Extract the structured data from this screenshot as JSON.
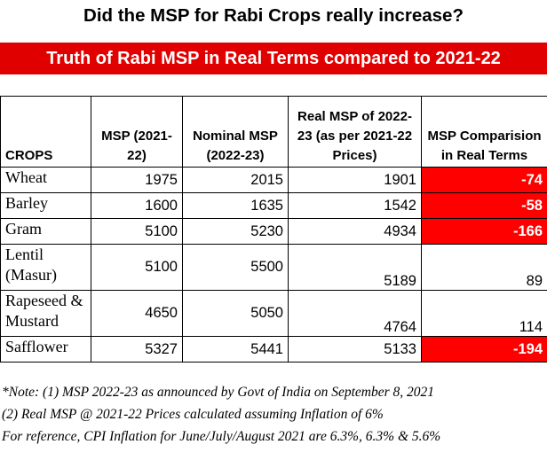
{
  "title": "Did the MSP for Rabi Crops really increase?",
  "banner": "Truth of Rabi MSP in Real Terms compared to 2021-22",
  "colors": {
    "banner": "#e00000",
    "negative": "#ff0000"
  },
  "table": {
    "headers": {
      "crops": "CROPS",
      "msp": "MSP (2021-22)",
      "nominal": "Nominal MSP (2022-23)",
      "real": "Real MSP of 2022-23 (as per 2021-22 Prices)",
      "comparison": "MSP Comparision in Real Terms"
    },
    "rows": [
      {
        "crop": "Wheat",
        "msp": "1975",
        "nominal": "2015",
        "real": "1901",
        "diff": "-74"
      },
      {
        "crop": "Barley",
        "msp": "1600",
        "nominal": "1635",
        "real": "1542",
        "diff": "-58"
      },
      {
        "crop": "Gram",
        "msp": "5100",
        "nominal": "5230",
        "real": "4934",
        "diff": "-166"
      },
      {
        "crop": "Lentil (Masur)",
        "msp": "5100",
        "nominal": "5500",
        "real": "5189",
        "diff": "89"
      },
      {
        "crop": "Rapeseed & Mustard",
        "msp": "4650",
        "nominal": "5050",
        "real": "4764",
        "diff": "114"
      },
      {
        "crop": "Safflower",
        "msp": "5327",
        "nominal": "5441",
        "real": "5133",
        "diff": "-194"
      }
    ]
  },
  "notes": [
    "*Note: (1) MSP 2022-23 as announced by Govt of India on September 8, 2021",
    "(2) Real MSP @ 2021-22 Prices calculated assuming Inflation of 6%",
    "For reference, CPI Inflation for June/July/August 2021 are 6.3%, 6.3% & 5.6%"
  ]
}
